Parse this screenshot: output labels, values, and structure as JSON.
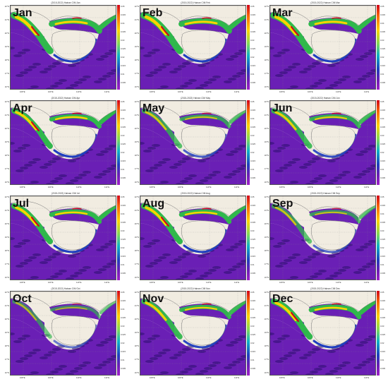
{
  "panels": [
    {
      "month": "Jan",
      "header": "(2015-2022) Hainan CIM Jan"
    },
    {
      "month": "Feb",
      "header": "(2015-2022) Hainan CIM Feb"
    },
    {
      "month": "Mar",
      "header": "(2015-2022) Hainan CIM Mar"
    },
    {
      "month": "Apr",
      "header": "(2015-2022) Hainan CIM Apr"
    },
    {
      "month": "May",
      "header": "(2015-2022) Hainan CIM May"
    },
    {
      "month": "Jun",
      "header": "(2015-2022) Hainan CIM Jun"
    },
    {
      "month": "Jul",
      "header": "(2015-2022) Hainan CIM Jul"
    },
    {
      "month": "Aug",
      "header": "(2015-2022) Hainan CIM Aug"
    },
    {
      "month": "Sep",
      "header": "(2015-2022) Hainan CIM Sep"
    },
    {
      "month": "Oct",
      "header": "(2015-2022) Hainan CIM Oct"
    },
    {
      "month": "Nov",
      "header": "(2015-2022) Hainan CIM Nov"
    },
    {
      "month": "Dec",
      "header": "(2015-2022) Hainan CIM Dec"
    }
  ],
  "lat_labels": [
    "22°N",
    "21°N",
    "20°N",
    "19°N",
    "18°N",
    "17°N",
    "16°N"
  ],
  "lon_labels": [
    "108°E",
    "109°E",
    "110°E",
    "111°E"
  ],
  "colorbar_ticks": [
    "0.05",
    "0.045",
    "0.04",
    "0.035",
    "0.03",
    "0.025",
    "0.02",
    "0.015",
    "0.01",
    "0.005"
  ],
  "colors": {
    "land": "#f1ece1",
    "ocean": "#6a1fb5",
    "hot": "#d0021b",
    "warm": "#ffd400",
    "mid": "#2fb84b",
    "cool": "#1f3fbf"
  }
}
